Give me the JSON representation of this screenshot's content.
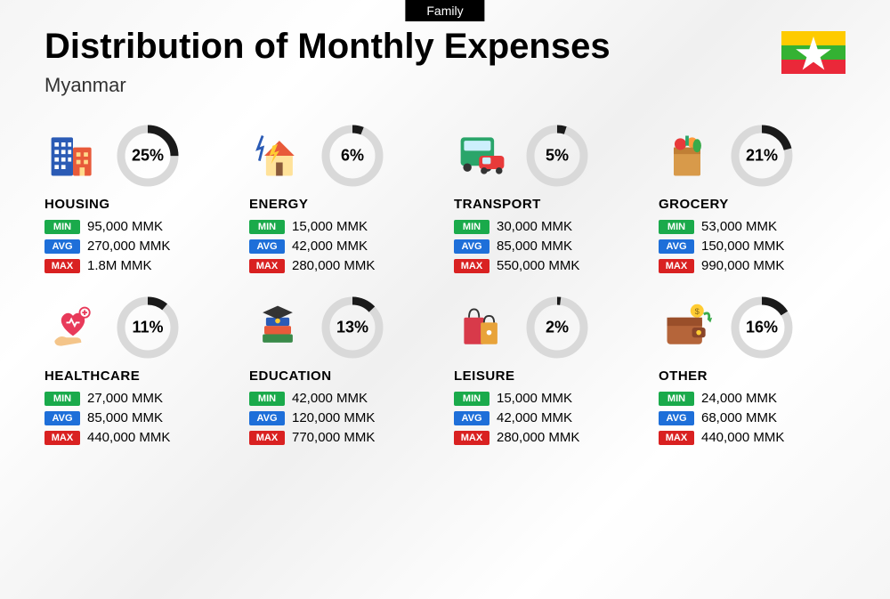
{
  "topBadge": "Family",
  "title": "Distribution of Monthly Expenses",
  "subtitle": "Myanmar",
  "flag": {
    "stripes": [
      "#FECB00",
      "#34B233",
      "#EA2839"
    ],
    "star": "#ffffff"
  },
  "badgeColors": {
    "min": "#1aaa4b",
    "avg": "#1e6fd9",
    "max": "#d92121"
  },
  "badgeLabels": {
    "min": "MIN",
    "avg": "AVG",
    "max": "MAX"
  },
  "donut": {
    "ringBg": "#d9d9d9",
    "ringFg": "#1a1a1a",
    "strokeWidth": 9,
    "radius": 30
  },
  "categories": [
    {
      "key": "housing",
      "name": "HOUSING",
      "pct": 25,
      "pctLabel": "25%",
      "min": "95,000 MMK",
      "avg": "270,000 MMK",
      "max": "1.8M MMK",
      "icon": "buildings"
    },
    {
      "key": "energy",
      "name": "ENERGY",
      "pct": 6,
      "pctLabel": "6%",
      "min": "15,000 MMK",
      "avg": "42,000 MMK",
      "max": "280,000 MMK",
      "icon": "house-bolt"
    },
    {
      "key": "transport",
      "name": "TRANSPORT",
      "pct": 5,
      "pctLabel": "5%",
      "min": "30,000 MMK",
      "avg": "85,000 MMK",
      "max": "550,000 MMK",
      "icon": "bus-car"
    },
    {
      "key": "grocery",
      "name": "GROCERY",
      "pct": 21,
      "pctLabel": "21%",
      "min": "53,000 MMK",
      "avg": "150,000 MMK",
      "max": "990,000 MMK",
      "icon": "grocery-bag"
    },
    {
      "key": "healthcare",
      "name": "HEALTHCARE",
      "pct": 11,
      "pctLabel": "11%",
      "min": "27,000 MMK",
      "avg": "85,000 MMK",
      "max": "440,000 MMK",
      "icon": "heart-hand"
    },
    {
      "key": "education",
      "name": "EDUCATION",
      "pct": 13,
      "pctLabel": "13%",
      "min": "42,000 MMK",
      "avg": "120,000 MMK",
      "max": "770,000 MMK",
      "icon": "grad-books"
    },
    {
      "key": "leisure",
      "name": "LEISURE",
      "pct": 2,
      "pctLabel": "2%",
      "min": "15,000 MMK",
      "avg": "42,000 MMK",
      "max": "280,000 MMK",
      "icon": "shopping-bags"
    },
    {
      "key": "other",
      "name": "OTHER",
      "pct": 16,
      "pctLabel": "16%",
      "min": "24,000 MMK",
      "avg": "68,000 MMK",
      "max": "440,000 MMK",
      "icon": "wallet"
    }
  ]
}
